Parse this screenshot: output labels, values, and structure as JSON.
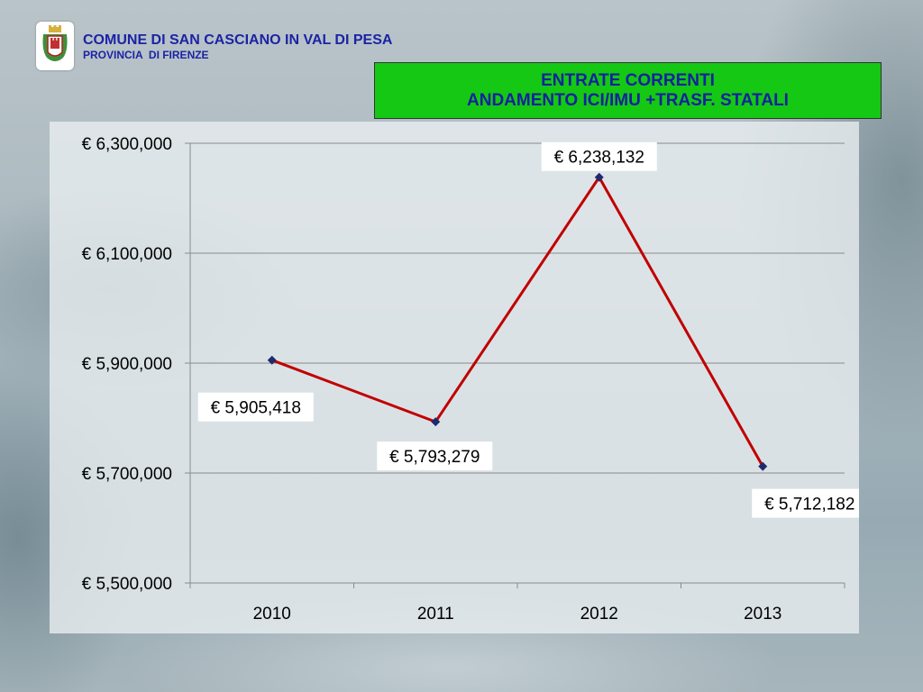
{
  "header": {
    "comune": "COMUNE DI SAN CASCIANO IN VAL DI PESA",
    "provincia": "PROVINCIA  DI FIRENZE",
    "logo_icon": "coat-of-arms-icon"
  },
  "title": {
    "line1": "ENTRATE CORRENTI",
    "line2": "ANDAMENTO ICI/IMU +TRASF. STATALI"
  },
  "colors": {
    "title_box": "#14c814",
    "title_text": "#15219e",
    "line": "#c00000",
    "marker": "#1f2a6e"
  },
  "chart_data": {
    "type": "line",
    "categories": [
      "2010",
      "2011",
      "2012",
      "2013"
    ],
    "series": [
      {
        "values": [
          5905418,
          5793279,
          6238132,
          5712182
        ],
        "labels": [
          "€ 5,905,418",
          "€ 5,793,279",
          "€ 6,238,132",
          "€ 5,712,182"
        ]
      }
    ],
    "ylim": [
      5500000,
      6300000
    ],
    "yticks": [
      5500000,
      5700000,
      5900000,
      6100000,
      6300000
    ],
    "ytick_labels": [
      "€ 5,500,000",
      "€ 5,700,000",
      "€ 5,900,000",
      "€ 6,100,000",
      "€ 6,300,000"
    ],
    "grid": true,
    "legend": "none",
    "xlabel": "",
    "ylabel": ""
  }
}
